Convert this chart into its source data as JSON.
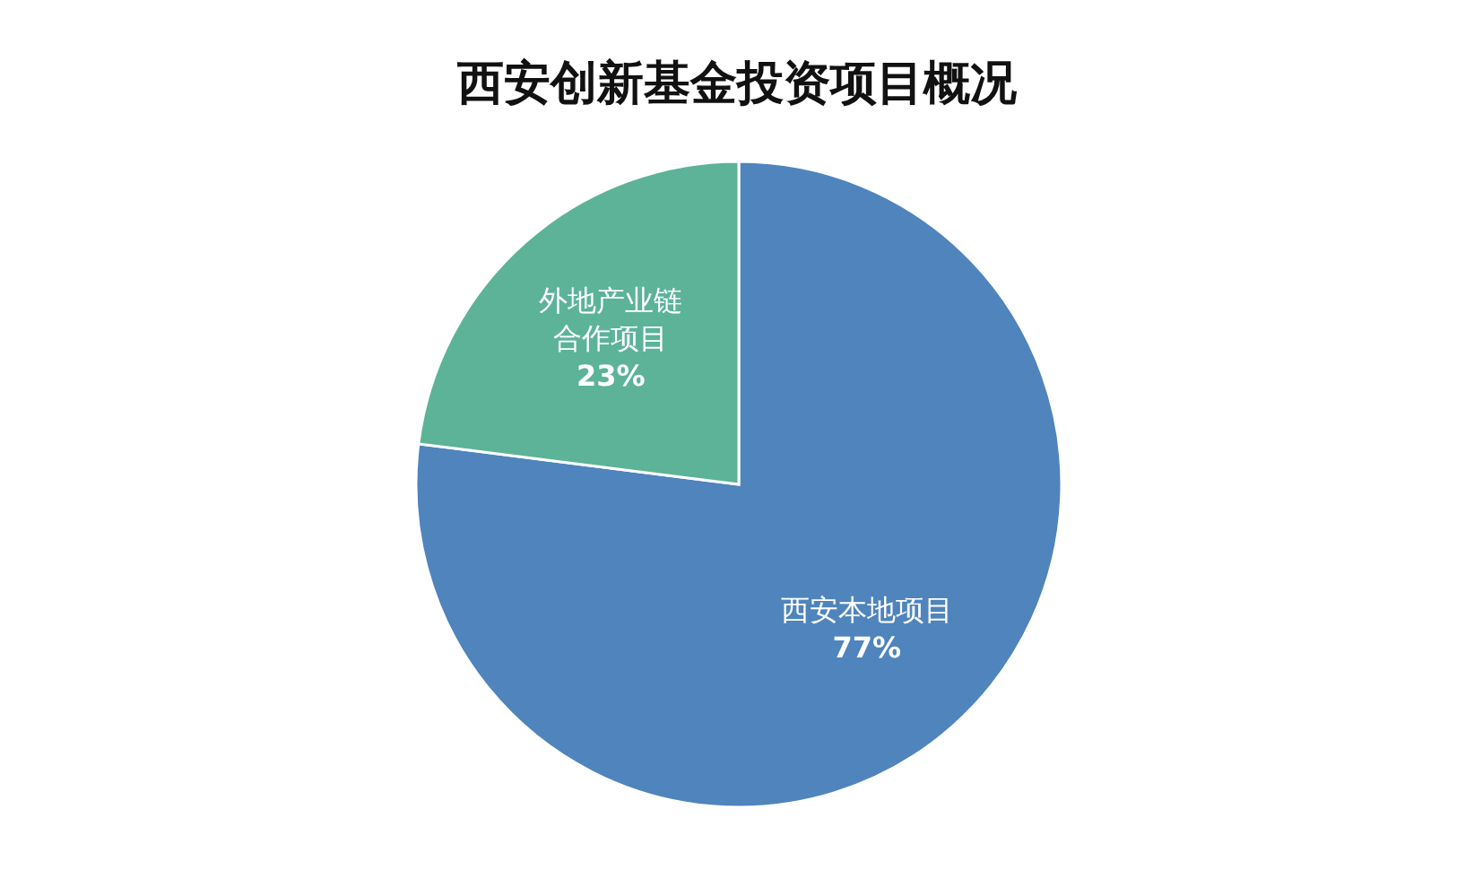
{
  "chart_data": {
    "type": "pie",
    "title": "西安创新基金投资项目概况",
    "categories": [
      "西安本地项目",
      "外地产业链合作项目"
    ],
    "values": [
      77,
      23
    ],
    "colors": [
      "#4f84bd",
      "#5cb398"
    ],
    "value_labels": [
      "77%",
      "23%"
    ]
  }
}
